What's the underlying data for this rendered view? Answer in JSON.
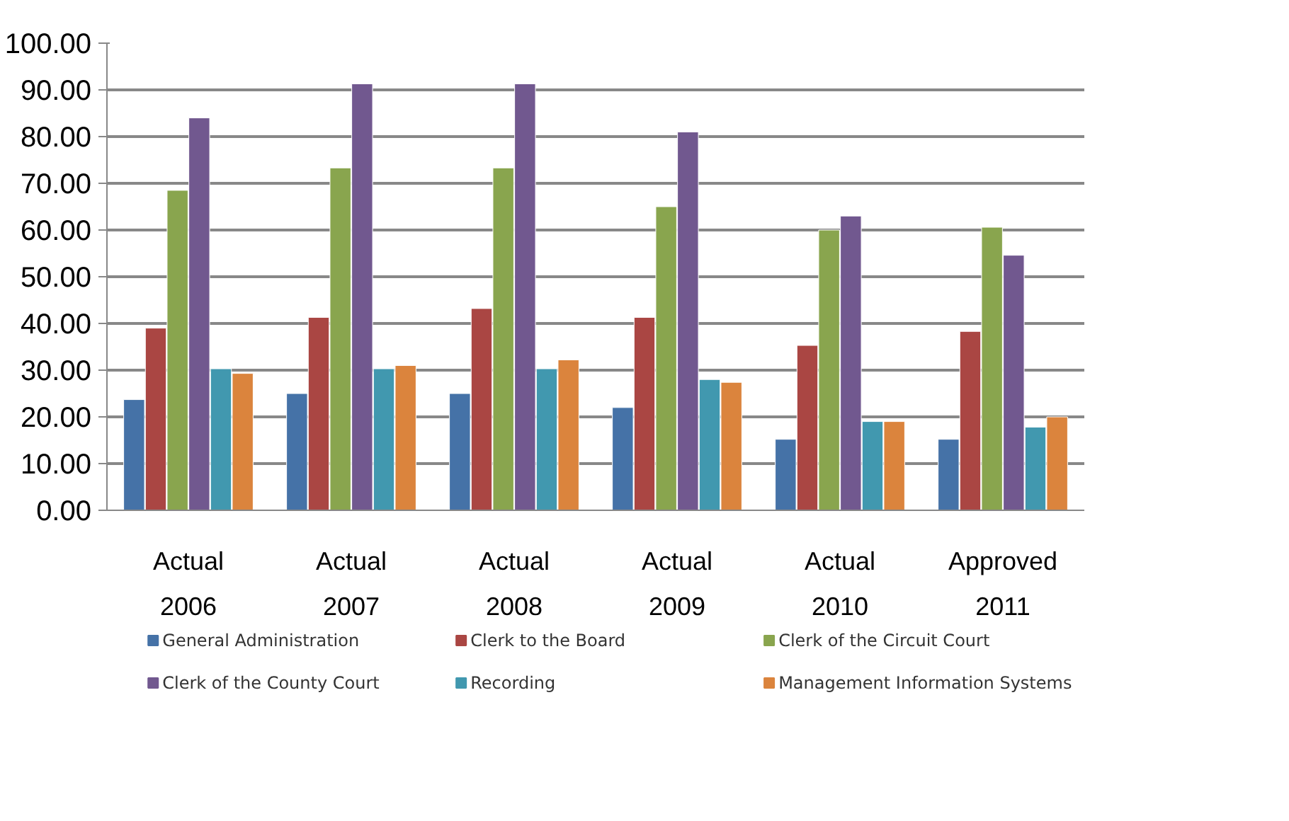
{
  "chart_data": {
    "type": "bar",
    "categories": [
      "Actual\n2006",
      "Actual\n2007",
      "Actual\n2008",
      "Actual\n2009",
      "Actual\n2010",
      "Approved\n2011"
    ],
    "series": [
      {
        "name": "General Administration",
        "color": "#4572a7",
        "values": [
          23.7,
          25,
          25,
          22,
          15.2,
          15.2
        ]
      },
      {
        "name": "Clerk to the Board",
        "color": "#aa4643",
        "values": [
          39,
          41.3,
          43.2,
          41.3,
          35.3,
          38.3
        ]
      },
      {
        "name": "Clerk of the Circuit Court",
        "color": "#89a54e",
        "values": [
          68.5,
          73.3,
          73.3,
          65,
          60,
          60.6
        ]
      },
      {
        "name": "Clerk of the County Court",
        "color": "#71588f",
        "values": [
          84,
          91.3,
          91.3,
          81,
          63,
          54.6
        ]
      },
      {
        "name": "Recording",
        "color": "#4198af",
        "values": [
          30.3,
          30.3,
          30.3,
          28,
          19,
          17.8
        ]
      },
      {
        "name": "Management Information Systems",
        "color": "#db843d",
        "values": [
          29.3,
          31,
          32.2,
          27.4,
          19,
          20
        ]
      }
    ],
    "ylim": [
      0,
      100
    ],
    "yticks": [
      {
        "value": 0,
        "label": "0.00"
      },
      {
        "value": 10,
        "label": "10.00"
      },
      {
        "value": 20,
        "label": "20.00"
      },
      {
        "value": 30,
        "label": "30.00"
      },
      {
        "value": 40,
        "label": "40.00"
      },
      {
        "value": 50,
        "label": "50.00"
      },
      {
        "value": 60,
        "label": "60.00"
      },
      {
        "value": 70,
        "label": "70.00"
      },
      {
        "value": 80,
        "label": "80.00"
      },
      {
        "value": 90,
        "label": "90.00"
      },
      {
        "value": 100,
        "label": "100.00"
      }
    ],
    "grid": "y",
    "legend": "bottom"
  }
}
